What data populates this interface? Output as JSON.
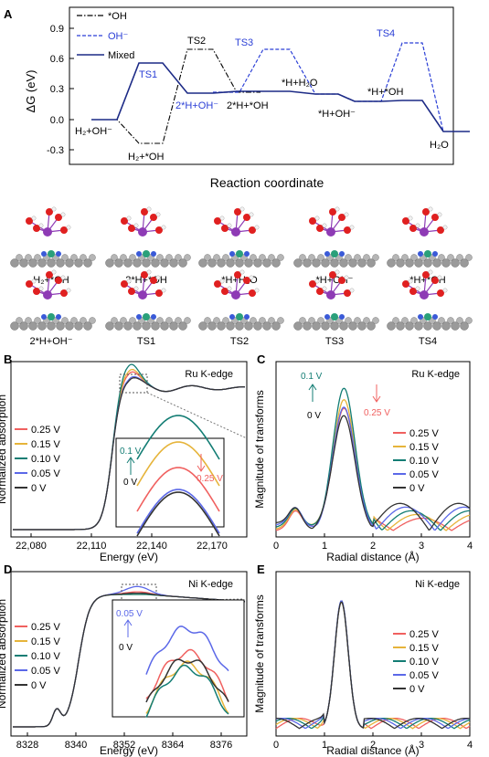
{
  "colors": {
    "v025": "#f0605f",
    "v015": "#e6b43a",
    "v010": "#137d74",
    "v005": "#5b68e8",
    "v0": "#333333",
    "mixed": "#1c2a86",
    "oh_minus": "#2b3fd6",
    "star_oh": "#000000",
    "blue_label": "#2b3fd6"
  },
  "panel_labels": {
    "a": "A",
    "b": "B",
    "c": "C",
    "d": "D",
    "e": "E"
  },
  "panelA": {
    "ylabel": "ΔG (eV)",
    "xlabel": "Reaction coordinate",
    "yticks": [
      "0.9",
      "0.6",
      "0.3",
      "0.0",
      "-0.3"
    ],
    "legend": [
      "*OH",
      "OH⁻",
      "Mixed"
    ],
    "annotations": {
      "h2_oh_minus": "H₂+OH⁻",
      "h2_star_oh": "H₂+*OH",
      "ts1": "TS1",
      "ts2": "TS2",
      "ts3": "TS3",
      "ts4": "TS4",
      "two_h_oh_minus": "2*H+OH⁻",
      "two_h_star_oh": "2*H+*OH",
      "h_h2o": "*H+H₂O",
      "h_oh_minus": "*H+OH⁻",
      "h_star_oh": "*H+*OH",
      "h2o": "H₂O"
    }
  },
  "structures": {
    "row1": [
      "H₂+*OH",
      "2*H+*OH",
      "*H+H₂O",
      "*H+OH⁻",
      "*H+*OH"
    ],
    "row2": [
      "2*H+OH⁻",
      "TS1",
      "TS2",
      "TS3",
      "TS4"
    ]
  },
  "panelB": {
    "title": "Ru K-edge",
    "ylabel": "Normalized absorption",
    "xlabel": "Energy (eV)",
    "xticks": [
      "22,080",
      "22,110",
      "22,140",
      "22,170"
    ],
    "legend": [
      "0.25 V",
      "0.15 V",
      "0.10 V",
      "0.05 V",
      "0 V"
    ],
    "inset": {
      "up": "0.1 V",
      "down": "0.25 V",
      "base": "0 V"
    }
  },
  "panelC": {
    "title": "Ru K-edge",
    "ylabel": "Magnitude of transforms",
    "xlabel": "Radial distance (Å)",
    "xticks": [
      "0",
      "1",
      "2",
      "3",
      "4"
    ],
    "legend": [
      "0.25 V",
      "0.15 V",
      "0.10 V",
      "0.05 V",
      "0 V"
    ],
    "arrows": {
      "up": "0.1 V",
      "base": "0 V",
      "down": "0.25 V"
    }
  },
  "panelD": {
    "title": "Ni K-edge",
    "ylabel": "Normalized absorption",
    "xlabel": "Energy (eV)",
    "xticks": [
      "8328",
      "8340",
      "8352",
      "8364",
      "8376"
    ],
    "legend": [
      "0.25 V",
      "0.15 V",
      "0.10 V",
      "0.05 V",
      "0 V"
    ],
    "inset": {
      "up": "0.05 V",
      "base": "0 V"
    }
  },
  "panelE": {
    "title": "Ni K-edge",
    "ylabel": "Magnitude of transforms",
    "xlabel": "Radial distance (Å)",
    "xticks": [
      "0",
      "1",
      "2",
      "3",
      "4"
    ],
    "legend": [
      "0.25 V",
      "0.15 V",
      "0.10 V",
      "0.05 V",
      "0 V"
    ]
  },
  "chart_data": [
    {
      "type": "line",
      "ylabel": "ΔG (eV)",
      "xlabel": "Reaction coordinate",
      "ylim": [
        -0.4,
        1.0
      ],
      "series": [
        {
          "name": "*OH",
          "style": "dash-dot",
          "points": [
            [
              0,
              0.0
            ],
            [
              1,
              0.0
            ],
            [
              2,
              -0.24
            ],
            [
              3,
              -0.24
            ],
            [
              4,
              0.7
            ],
            [
              5,
              0.7
            ],
            [
              6,
              0.26
            ],
            [
              7,
              0.26
            ]
          ]
        },
        {
          "name": "OH⁻",
          "style": "dashed",
          "points": [
            [
              6,
              0.26
            ],
            [
              7,
              0.26
            ],
            [
              8,
              0.68
            ],
            [
              9,
              0.68
            ],
            [
              10,
              0.24
            ],
            [
              11,
              0.24
            ],
            [
              12,
              0.17
            ],
            [
              13,
              0.17
            ],
            [
              14,
              0.76
            ],
            [
              15,
              0.76
            ],
            [
              16,
              -0.12
            ],
            [
              17,
              -0.12
            ]
          ]
        },
        {
          "name": "Mixed",
          "style": "solid",
          "points": [
            [
              0,
              0.0
            ],
            [
              1,
              0.0
            ],
            [
              2,
              0.56
            ],
            [
              3,
              0.56
            ],
            [
              4,
              0.26
            ],
            [
              5,
              0.26
            ],
            [
              6,
              0.26
            ],
            [
              7,
              0.28
            ],
            [
              8,
              0.28
            ],
            [
              9,
              0.28
            ],
            [
              10,
              0.24
            ],
            [
              11,
              0.24
            ],
            [
              12,
              0.17
            ],
            [
              13,
              0.17
            ],
            [
              14,
              0.18
            ],
            [
              15,
              0.18
            ],
            [
              16,
              -0.12
            ],
            [
              17,
              -0.12
            ]
          ]
        }
      ]
    },
    {
      "type": "line",
      "title": "Ru K-edge",
      "xlabel": "Energy (eV)",
      "ylabel": "Normalized absorption",
      "xlim": [
        22080,
        22180
      ],
      "series_names": [
        "0.25 V",
        "0.15 V",
        "0.10 V",
        "0.05 V",
        "0 V"
      ],
      "peak_values": [
        1.12,
        1.14,
        1.18,
        1.08,
        1.07
      ]
    },
    {
      "type": "line",
      "title": "Ru K-edge",
      "xlabel": "Radial distance (Å)",
      "ylabel": "Magnitude of transforms",
      "xlim": [
        0,
        4
      ],
      "series_names": [
        "0.25 V",
        "0.15 V",
        "0.10 V",
        "0.05 V",
        "0 V"
      ],
      "peak_values": [
        0.88,
        0.93,
        1.0,
        0.85,
        0.78
      ]
    },
    {
      "type": "line",
      "title": "Ni K-edge",
      "xlabel": "Energy (eV)",
      "ylabel": "Normalized absorption",
      "xlim": [
        8328,
        8382
      ],
      "series_names": [
        "0.25 V",
        "0.15 V",
        "0.10 V",
        "0.05 V",
        "0 V"
      ],
      "peak_values": [
        1.02,
        1.0,
        1.0,
        1.06,
        1.01
      ]
    },
    {
      "type": "line",
      "title": "Ni K-edge",
      "xlabel": "Radial distance (Å)",
      "ylabel": "Magnitude of transforms",
      "xlim": [
        0,
        4
      ],
      "series_names": [
        "0.25 V",
        "0.15 V",
        "0.10 V",
        "0.05 V",
        "0 V"
      ],
      "peak_values": [
        1.0,
        0.99,
        1.0,
        1.0,
        0.99
      ]
    }
  ]
}
